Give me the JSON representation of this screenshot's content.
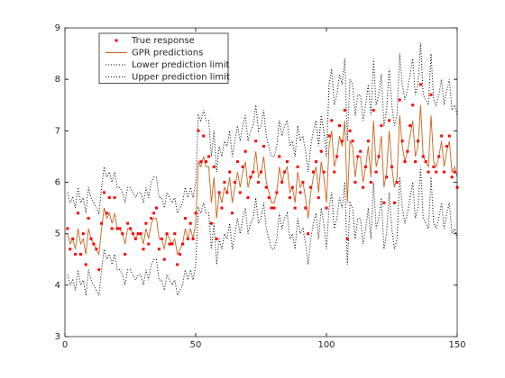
{
  "chart_data": {
    "type": "line",
    "x": [
      1,
      2,
      3,
      4,
      5,
      6,
      7,
      8,
      9,
      10,
      11,
      12,
      13,
      14,
      15,
      16,
      17,
      18,
      19,
      20,
      21,
      22,
      23,
      24,
      25,
      26,
      27,
      28,
      29,
      30,
      31,
      32,
      33,
      34,
      35,
      36,
      37,
      38,
      39,
      40,
      41,
      42,
      43,
      44,
      45,
      46,
      47,
      48,
      49,
      50,
      51,
      52,
      53,
      54,
      55,
      56,
      57,
      58,
      59,
      60,
      61,
      62,
      63,
      64,
      65,
      66,
      67,
      68,
      69,
      70,
      71,
      72,
      73,
      74,
      75,
      76,
      77,
      78,
      79,
      80,
      81,
      82,
      83,
      84,
      85,
      86,
      87,
      88,
      89,
      90,
      91,
      92,
      93,
      94,
      95,
      96,
      97,
      98,
      99,
      100,
      101,
      102,
      103,
      104,
      105,
      106,
      107,
      108,
      109,
      110,
      111,
      112,
      113,
      114,
      115,
      116,
      117,
      118,
      119,
      120,
      121,
      122,
      123,
      124,
      125,
      126,
      127,
      128,
      129,
      130,
      131,
      132,
      133,
      134,
      135,
      136,
      137,
      138,
      139,
      140,
      141,
      142,
      143,
      144,
      145,
      146,
      147,
      148,
      149,
      150
    ],
    "series": [
      {
        "name": "True response",
        "color": "#ff0000",
        "style": "dots",
        "values": [
          5.1,
          4.7,
          4.9,
          4.6,
          5.4,
          4.6,
          5.0,
          4.4,
          5.3,
          4.9,
          4.8,
          4.7,
          4.3,
          5.2,
          5.8,
          5.4,
          5.7,
          5.1,
          5.7,
          5.1,
          5.1,
          5.0,
          4.6,
          5.2,
          5.1,
          5.0,
          4.9,
          5.0,
          5.0,
          4.7,
          5.2,
          4.8,
          5.3,
          5.4,
          5.5,
          4.7,
          4.9,
          4.5,
          5.0,
          4.8,
          4.8,
          5.0,
          4.4,
          4.6,
          4.8,
          5.3,
          4.9,
          5.2,
          4.9,
          5.4,
          7.0,
          6.4,
          6.9,
          6.4,
          6.5,
          5.2,
          6.3,
          4.9,
          5.8,
          5.5,
          6.0,
          5.8,
          6.2,
          5.4,
          6.0,
          6.4,
          5.8,
          6.3,
          6.6,
          5.7,
          6.1,
          6.2,
          6.8,
          6.0,
          6.2,
          6.7,
          5.9,
          5.7,
          5.5,
          5.5,
          5.8,
          6.5,
          6.0,
          6.2,
          6.4,
          5.7,
          5.9,
          5.5,
          6.3,
          5.8,
          6.0,
          5.5,
          5.0,
          5.9,
          6.2,
          6.4,
          5.7,
          6.6,
          6.2,
          5.5,
          6.9,
          7.2,
          6.2,
          6.5,
          7.1,
          6.8,
          7.4,
          4.9,
          7.0,
          6.8,
          6.0,
          6.5,
          6.6,
          5.9,
          6.3,
          6.8,
          6.0,
          7.4,
          6.2,
          6.5,
          7.1,
          5.6,
          6.1,
          7.2,
          6.3,
          5.6,
          6.0,
          7.6,
          6.8,
          6.4,
          6.6,
          7.1,
          7.5,
          6.4,
          6.8,
          7.9,
          6.5,
          6.4,
          6.2,
          7.7,
          6.3,
          6.2,
          6.5,
          6.9,
          6.2,
          6.7,
          6.9,
          6.1,
          6.2,
          5.9
        ]
      },
      {
        "name": "GPR predictions",
        "color": "#c8641e",
        "style": "solid",
        "values": [
          5.0,
          4.8,
          4.9,
          4.7,
          5.1,
          4.8,
          4.9,
          4.6,
          5.1,
          4.9,
          4.8,
          4.7,
          4.6,
          5.1,
          5.5,
          5.3,
          5.4,
          5.2,
          5.4,
          5.1,
          5.1,
          5.0,
          4.8,
          5.1,
          5.1,
          5.0,
          4.9,
          5.0,
          5.0,
          4.8,
          5.1,
          4.9,
          5.2,
          5.3,
          5.3,
          4.9,
          4.9,
          4.7,
          5.0,
          4.9,
          4.8,
          4.9,
          4.6,
          4.7,
          4.8,
          5.1,
          4.9,
          5.1,
          4.9,
          5.2,
          6.4,
          6.3,
          6.5,
          6.3,
          6.3,
          5.6,
          6.1,
          5.3,
          5.8,
          5.6,
          5.9,
          5.8,
          6.1,
          5.6,
          5.9,
          6.2,
          5.9,
          6.2,
          6.4,
          5.9,
          6.1,
          6.2,
          6.6,
          6.1,
          6.2,
          6.5,
          6.0,
          5.8,
          5.6,
          5.6,
          5.8,
          6.3,
          6.0,
          6.2,
          6.3,
          5.8,
          5.9,
          5.6,
          6.2,
          5.9,
          6.0,
          5.7,
          5.3,
          5.8,
          6.1,
          6.3,
          5.8,
          6.4,
          6.1,
          5.6,
          6.7,
          7.0,
          6.3,
          6.5,
          6.9,
          6.7,
          7.2,
          5.6,
          6.8,
          6.7,
          6.1,
          6.5,
          6.5,
          6.0,
          6.3,
          6.7,
          6.1,
          7.2,
          6.3,
          6.5,
          6.9,
          5.9,
          6.2,
          7.0,
          6.3,
          5.9,
          6.1,
          7.3,
          6.7,
          6.4,
          6.6,
          6.9,
          7.2,
          6.5,
          6.7,
          7.5,
          6.5,
          6.4,
          6.3,
          7.3,
          6.4,
          6.3,
          6.5,
          6.8,
          6.3,
          6.6,
          6.8,
          6.2,
          6.3,
          6.1
        ]
      },
      {
        "name": "Lower prediction limit",
        "color": "#000000",
        "style": "dotted",
        "values": [
          4.2,
          4.0,
          4.1,
          3.9,
          4.3,
          4.0,
          4.1,
          3.8,
          4.3,
          4.1,
          4.0,
          3.9,
          3.8,
          4.3,
          4.7,
          4.5,
          4.6,
          4.4,
          4.6,
          4.3,
          4.3,
          4.2,
          4.0,
          4.3,
          4.3,
          4.2,
          4.1,
          4.2,
          4.2,
          4.0,
          4.3,
          4.1,
          4.4,
          4.5,
          4.5,
          4.1,
          4.1,
          3.9,
          4.2,
          4.1,
          4.0,
          4.1,
          3.8,
          3.9,
          4.0,
          4.3,
          4.1,
          4.3,
          4.1,
          4.4,
          5.5,
          5.4,
          5.6,
          5.4,
          5.4,
          4.7,
          5.2,
          4.4,
          4.9,
          4.7,
          5.0,
          4.9,
          5.2,
          4.7,
          5.0,
          5.3,
          5.0,
          5.3,
          5.5,
          5.0,
          5.2,
          5.3,
          5.7,
          5.2,
          5.3,
          5.6,
          5.1,
          4.9,
          4.7,
          4.7,
          4.9,
          5.4,
          5.1,
          5.3,
          5.4,
          4.9,
          5.0,
          4.7,
          5.3,
          5.0,
          5.1,
          4.8,
          4.4,
          4.9,
          5.2,
          5.4,
          4.9,
          5.5,
          5.2,
          4.7,
          5.5,
          5.8,
          5.1,
          5.3,
          5.7,
          5.5,
          6.0,
          4.4,
          5.6,
          5.5,
          4.9,
          5.3,
          5.3,
          4.8,
          5.1,
          5.5,
          4.9,
          6.0,
          5.1,
          5.3,
          5.7,
          4.7,
          5.0,
          5.8,
          5.1,
          4.7,
          4.9,
          6.1,
          5.5,
          5.2,
          5.4,
          5.7,
          6.0,
          5.3,
          5.5,
          6.3,
          5.3,
          5.2,
          5.1,
          6.1,
          5.2,
          5.1,
          5.3,
          5.6,
          5.1,
          5.4,
          5.6,
          5.0,
          5.1,
          4.9
        ]
      },
      {
        "name": "Upper prediction limit",
        "color": "#000000",
        "style": "dotted",
        "values": [
          5.8,
          5.6,
          5.7,
          5.5,
          5.9,
          5.6,
          5.7,
          5.4,
          5.9,
          5.7,
          5.6,
          5.5,
          5.4,
          5.9,
          6.3,
          6.1,
          6.2,
          6.0,
          6.2,
          5.9,
          5.9,
          5.8,
          5.6,
          5.9,
          5.9,
          5.8,
          5.7,
          5.8,
          5.8,
          5.6,
          5.9,
          5.7,
          6.0,
          6.1,
          6.1,
          5.7,
          5.7,
          5.5,
          5.8,
          5.7,
          5.6,
          5.7,
          5.4,
          5.5,
          5.6,
          5.9,
          5.7,
          5.9,
          5.7,
          6.0,
          7.3,
          7.2,
          7.4,
          7.2,
          7.2,
          6.5,
          7.0,
          6.2,
          6.7,
          6.5,
          6.8,
          6.7,
          7.0,
          6.5,
          6.8,
          7.1,
          6.8,
          7.1,
          7.3,
          6.8,
          7.0,
          7.1,
          7.5,
          7.0,
          7.1,
          7.4,
          6.9,
          6.7,
          6.5,
          6.5,
          6.7,
          7.2,
          6.9,
          7.1,
          7.2,
          6.7,
          6.8,
          6.5,
          7.1,
          6.8,
          6.9,
          6.6,
          6.2,
          6.7,
          7.0,
          7.2,
          6.7,
          7.3,
          7.0,
          6.5,
          7.9,
          8.2,
          7.5,
          7.7,
          8.1,
          7.9,
          8.4,
          6.8,
          8.0,
          7.9,
          7.3,
          7.7,
          7.7,
          7.2,
          7.5,
          7.9,
          7.3,
          8.4,
          7.5,
          7.7,
          8.1,
          7.1,
          7.4,
          8.2,
          7.5,
          7.1,
          7.3,
          8.5,
          7.9,
          7.6,
          7.8,
          8.1,
          8.4,
          7.7,
          7.9,
          8.7,
          7.7,
          7.6,
          7.5,
          8.5,
          7.6,
          7.5,
          7.7,
          8.0,
          7.5,
          7.8,
          8.0,
          7.4,
          7.5,
          7.3
        ]
      }
    ],
    "xlim": [
      0,
      150
    ],
    "xticks": [
      0,
      50,
      100,
      150
    ],
    "ylim": [
      3,
      9
    ],
    "yticks": [
      3,
      4,
      5,
      6,
      7,
      8,
      9
    ],
    "legend": "upper left"
  }
}
